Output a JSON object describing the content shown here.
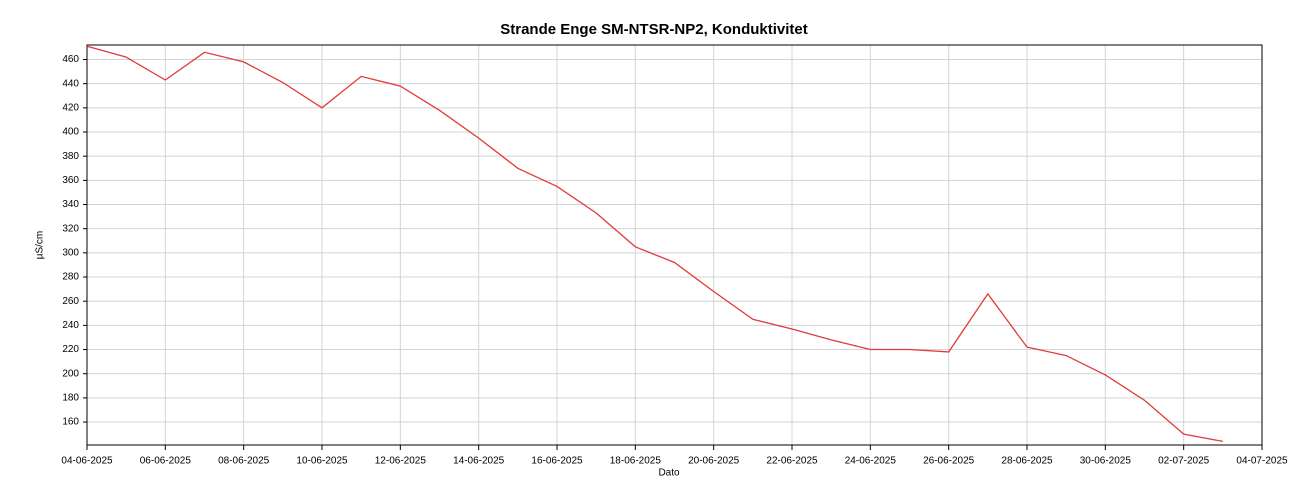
{
  "chart_data": {
    "type": "line",
    "title": "Strande Enge SM-NTSR-NP2, Konduktivitet",
    "x_label": "Dato",
    "y_label": "µS/cm",
    "x": [
      "04-06-2025",
      "05-06-2025",
      "06-06-2025",
      "07-06-2025",
      "08-06-2025",
      "09-06-2025",
      "10-06-2025",
      "11-06-2025",
      "12-06-2025",
      "13-06-2025",
      "14-06-2025",
      "15-06-2025",
      "16-06-2025",
      "17-06-2025",
      "18-06-2025",
      "19-06-2025",
      "20-06-2025",
      "21-06-2025",
      "22-06-2025",
      "23-06-2025",
      "24-06-2025",
      "25-06-2025",
      "26-06-2025",
      "27-06-2025",
      "28-06-2025",
      "29-06-2025",
      "30-06-2025",
      "01-07-2025",
      "02-07-2025",
      "03-07-2025"
    ],
    "series": [
      {
        "name": "Konduktivitet",
        "color": "#e03a3a",
        "values": [
          471,
          462,
          443,
          466,
          458,
          441,
          420,
          446,
          438,
          418,
          395,
          370,
          355,
          333,
          305,
          292,
          268,
          245,
          237,
          228,
          220,
          220,
          218,
          266,
          222,
          215,
          199,
          178,
          150,
          144
        ]
      }
    ],
    "xlim": [
      "04-06-2025",
      "04-07-2025"
    ],
    "xticks": [
      "04-06-2025",
      "06-06-2025",
      "08-06-2025",
      "10-06-2025",
      "12-06-2025",
      "14-06-2025",
      "16-06-2025",
      "18-06-2025",
      "20-06-2025",
      "22-06-2025",
      "24-06-2025",
      "26-06-2025",
      "28-06-2025",
      "30-06-2025",
      "02-07-2025",
      "04-07-2025"
    ],
    "ylim": [
      141,
      472
    ],
    "yticks": [
      160,
      180,
      200,
      220,
      240,
      260,
      280,
      300,
      320,
      340,
      360,
      380,
      400,
      420,
      440,
      460
    ],
    "grid": true
  }
}
